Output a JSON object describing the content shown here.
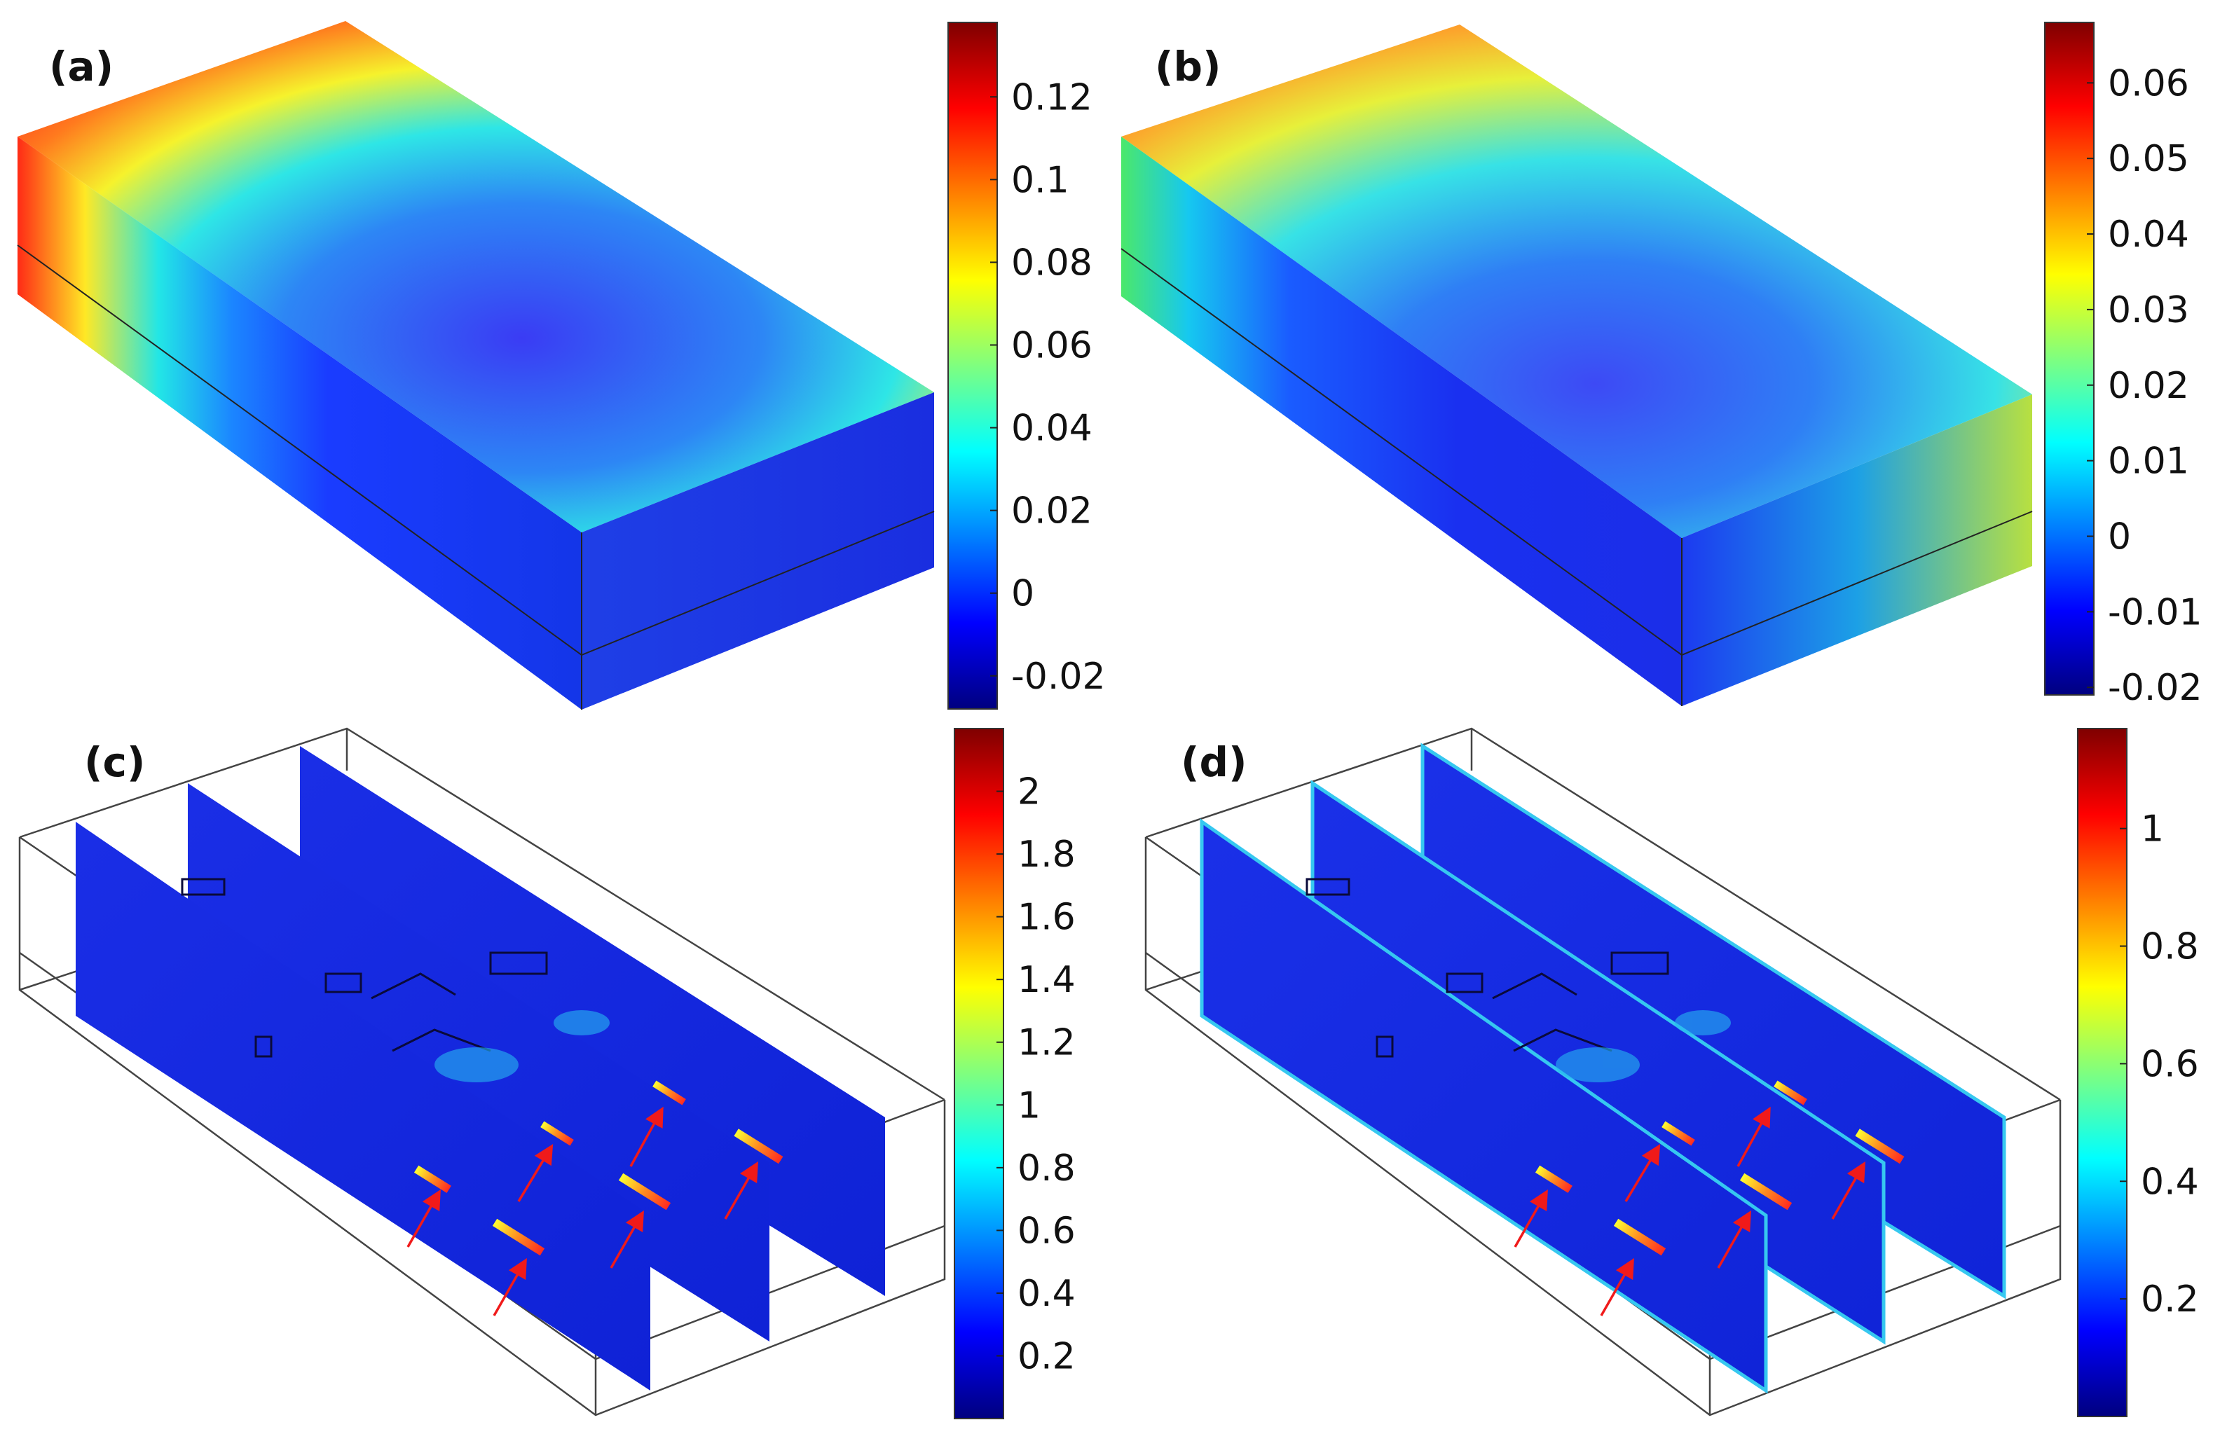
{
  "colormap": [
    "#00007f",
    "#0000ff",
    "#007fff",
    "#00ffff",
    "#7fff7f",
    "#ffff00",
    "#ff7f00",
    "#ff0000",
    "#7f0000"
  ],
  "panels": [
    {
      "label": "(a)",
      "kind": "solid-block",
      "colorbar": {
        "min": -0.028,
        "max": 0.138,
        "ticks": [
          "0.12",
          "0.1",
          "0.08",
          "0.06",
          "0.04",
          "0.02",
          "0",
          "-0.02"
        ],
        "tick_values": [
          0.12,
          0.1,
          0.08,
          0.06,
          0.04,
          0.02,
          0,
          -0.02
        ]
      }
    },
    {
      "label": "(b)",
      "kind": "solid-block",
      "colorbar": {
        "min": -0.021,
        "max": 0.068,
        "ticks": [
          "0.06",
          "0.05",
          "0.04",
          "0.03",
          "0.02",
          "0.01",
          "0",
          "-0.01",
          "-0.02"
        ],
        "tick_values": [
          0.06,
          0.05,
          0.04,
          0.03,
          0.02,
          0.01,
          0,
          -0.01,
          -0.02
        ]
      }
    },
    {
      "label": "(c)",
      "kind": "slice-planes",
      "colorbar": {
        "min": 0.0,
        "max": 2.2,
        "ticks": [
          "2",
          "1.8",
          "1.6",
          "1.4",
          "1.2",
          "1",
          "0.8",
          "0.6",
          "0.4",
          "0.2"
        ],
        "tick_values": [
          2,
          1.8,
          1.6,
          1.4,
          1.2,
          1,
          0.8,
          0.6,
          0.4,
          0.2
        ]
      },
      "arrows": 6
    },
    {
      "label": "(d)",
      "kind": "slice-planes",
      "colorbar": {
        "min": 0.0,
        "max": 1.17,
        "ticks": [
          "1",
          "0.8",
          "0.6",
          "0.4",
          "0.2"
        ],
        "tick_values": [
          1,
          0.8,
          0.6,
          0.4,
          0.2
        ]
      },
      "arrows": 6
    }
  ]
}
